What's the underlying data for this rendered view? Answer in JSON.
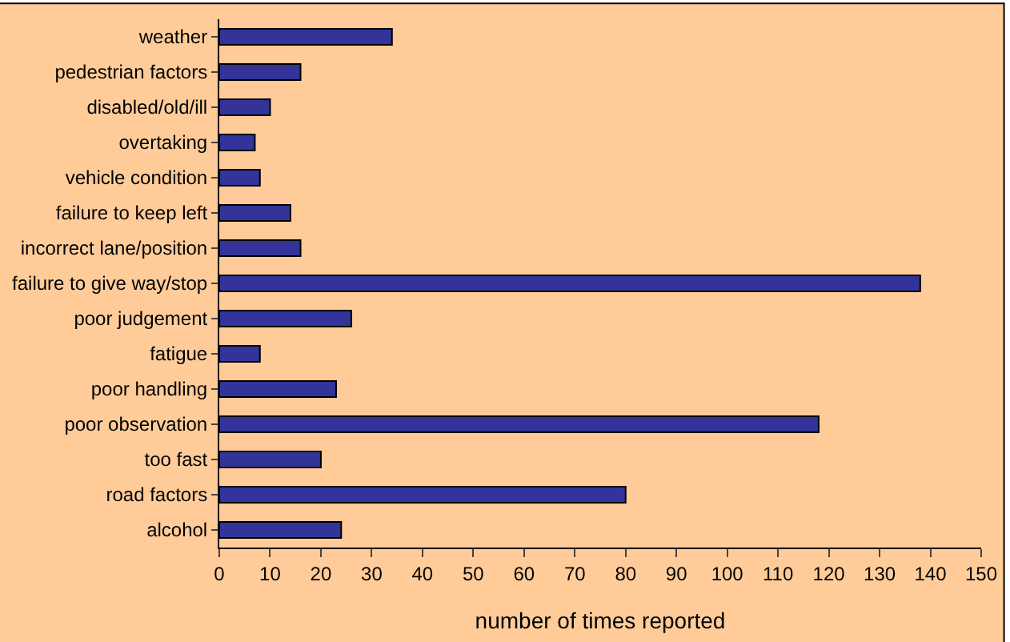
{
  "chart_data": {
    "type": "bar",
    "orientation": "horizontal",
    "categories": [
      "weather",
      "pedestrian factors",
      "disabled/old/ill",
      "overtaking",
      "vehicle condition",
      "failure to keep left",
      "incorrect lane/position",
      "failure to give way/stop",
      "poor judgement",
      "fatigue",
      "poor handling",
      "poor observation",
      "too fast",
      "road factors",
      "alcohol"
    ],
    "values": [
      34,
      16,
      10,
      7,
      8,
      14,
      16,
      138,
      26,
      8,
      23,
      118,
      20,
      80,
      24
    ],
    "color": "#333399",
    "xlabel": "number of times reported",
    "xlim": [
      0,
      150
    ],
    "xticks": [
      0,
      10,
      20,
      30,
      40,
      50,
      60,
      70,
      80,
      90,
      100,
      110,
      120,
      130,
      140,
      150
    ],
    "grid": false,
    "legend": false
  }
}
